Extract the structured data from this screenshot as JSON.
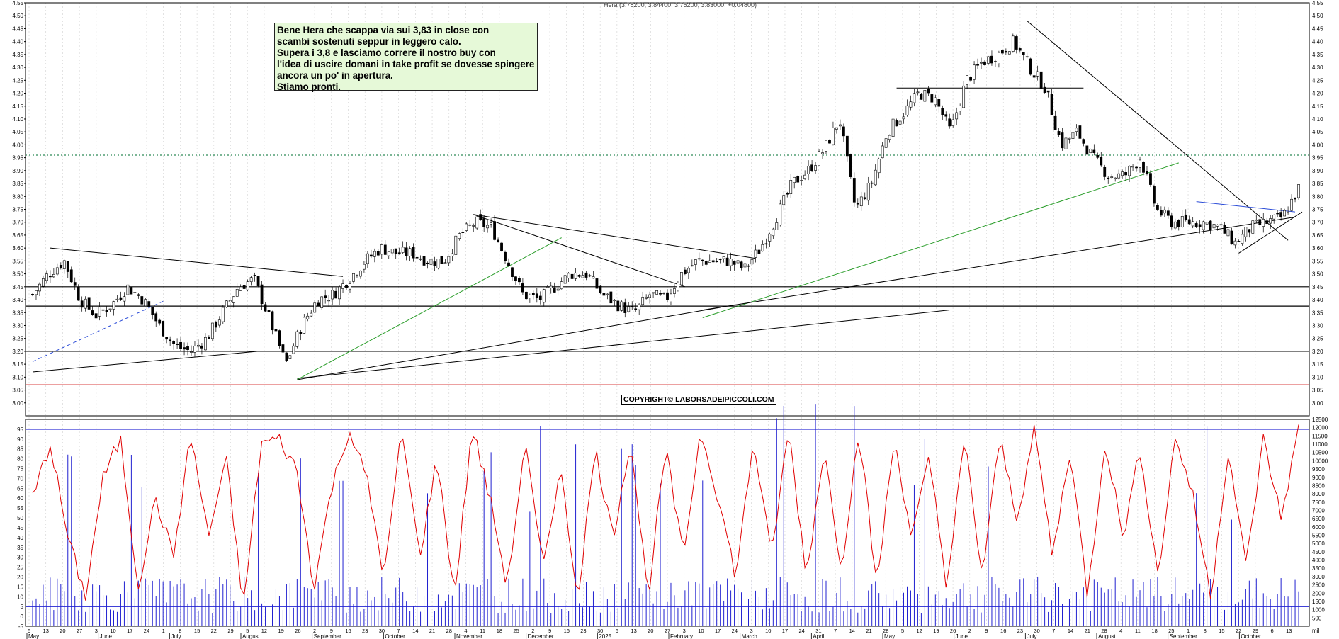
{
  "header": {
    "ohlc_label": "Hera (3.78200, 3.84400, 3.75200, 3.83000, +0.04800)"
  },
  "annotation": {
    "lines": [
      "Bene Hera che scappa via sui 3,83 in close con",
      "scambi sostenuti seppur in leggero calo.",
      "Supera i 3,8 e lasciamo correre il nostro buy con",
      "l'idea di uscire domani in take profit se dovesse spingere",
      "ancora un po' in apertura.",
      "Stiamo pronti."
    ]
  },
  "copyright": "COPYRIGHT© LABORSADEIPICCOLI.COM",
  "chart_data": [
    {
      "type": "candlestick",
      "series_name": "Hera",
      "ylim": [
        2.95,
        4.55
      ],
      "y_ticks": [
        "4.55",
        "4.50",
        "4.45",
        "4.40",
        "4.35",
        "4.30",
        "4.25",
        "4.20",
        "4.15",
        "4.10",
        "4.05",
        "4.00",
        "3.95",
        "3.90",
        "3.85",
        "3.80",
        "3.75",
        "3.70",
        "3.65",
        "3.60",
        "3.55",
        "3.50",
        "3.45",
        "3.40",
        "3.35",
        "3.30",
        "3.25",
        "3.20",
        "3.15",
        "3.10",
        "3.05",
        "3.00"
      ],
      "last_bar": {
        "open": 3.782,
        "high": 3.844,
        "low": 3.752,
        "close": 3.83,
        "change": 0.048
      },
      "horizontal_levels": [
        {
          "value": 3.96,
          "style": "dotted",
          "color": "#2e8b57"
        },
        {
          "value": 3.45,
          "style": "solid",
          "color": "#000000"
        },
        {
          "value": 3.375,
          "style": "solid",
          "color": "#000000"
        },
        {
          "value": 3.2,
          "style": "solid",
          "color": "#000000"
        },
        {
          "value": 3.07,
          "style": "solid",
          "color": "#cc0000"
        }
      ],
      "weekly_close_trace": [
        3.42,
        3.5,
        3.55,
        3.4,
        3.34,
        3.38,
        3.45,
        3.4,
        3.3,
        3.22,
        3.2,
        3.25,
        3.35,
        3.45,
        3.48,
        3.32,
        3.15,
        3.3,
        3.4,
        3.42,
        3.48,
        3.55,
        3.6,
        3.58,
        3.58,
        3.55,
        3.55,
        3.65,
        3.7,
        3.68,
        3.55,
        3.42,
        3.4,
        3.45,
        3.5,
        3.5,
        3.42,
        3.38,
        3.35,
        3.42,
        3.4,
        3.5,
        3.55,
        3.55,
        3.55,
        3.52,
        3.6,
        3.72,
        3.85,
        3.9,
        3.98,
        4.1,
        3.75,
        3.85,
        4.05,
        4.12,
        4.2,
        4.18,
        4.05,
        4.25,
        4.32,
        4.35,
        4.4,
        4.3,
        4.22,
        4.0,
        4.05,
        3.95,
        3.88,
        3.88,
        3.95,
        3.75,
        3.7,
        3.7,
        3.7,
        3.68,
        3.62,
        3.68,
        3.7,
        3.72,
        3.83
      ]
    },
    {
      "type": "line+bar",
      "series": [
        {
          "name": "oscillator",
          "color": "#e00000",
          "ylim": [
            -5,
            100
          ]
        },
        {
          "name": "volume",
          "color": "#0000cc",
          "ylim": [
            0,
            12500
          ]
        }
      ],
      "left_ticks": [
        "95",
        "90",
        "85",
        "80",
        "75",
        "70",
        "65",
        "60",
        "55",
        "50",
        "45",
        "40",
        "35",
        "30",
        "25",
        "20",
        "15",
        "10",
        "5",
        "0",
        "-5"
      ],
      "right_ticks": [
        "12500",
        "12000",
        "11500",
        "11000",
        "10500",
        "10000",
        "9500",
        "9000",
        "8500",
        "8000",
        "7500",
        "7000",
        "6500",
        "6000",
        "5500",
        "5000",
        "4500",
        "4000",
        "3500",
        "3000",
        "2500",
        "2000",
        "1500",
        "1000",
        "500"
      ],
      "right_unit": "mil",
      "levels": [
        95,
        5
      ],
      "oscillator_trace": [
        60,
        88,
        40,
        10,
        70,
        90,
        15,
        60,
        30,
        92,
        40,
        80,
        5,
        88,
        90,
        75,
        15,
        65,
        95,
        70,
        20,
        95,
        30,
        80,
        10,
        96,
        60,
        15,
        88,
        25,
        75,
        10,
        85,
        40,
        90,
        10,
        85,
        30,
        95,
        60,
        20,
        90,
        30,
        95,
        20,
        85,
        25,
        95,
        15,
        90,
        40,
        80,
        15,
        90,
        20,
        90,
        50,
        95,
        30,
        85,
        10,
        90,
        40,
        85,
        20,
        92,
        60,
        10,
        85,
        25,
        90,
        50,
        95
      ]
    },
    {
      "type": "date_axis",
      "months": [
        "May",
        "June",
        "July",
        "August",
        "September",
        "October",
        "November",
        "December",
        "2025",
        "February",
        "March",
        "April",
        "May",
        "June",
        "July",
        "August",
        "September",
        "October"
      ],
      "day_ticks": [
        "6",
        "13",
        "20",
        "27",
        "3",
        "10",
        "17",
        "24",
        "1",
        "8",
        "15",
        "22",
        "29",
        "5",
        "12",
        "19",
        "26",
        "2",
        "9",
        "16",
        "23",
        "30",
        "7",
        "14",
        "21",
        "28",
        "4",
        "11",
        "18",
        "25",
        "2",
        "9",
        "16",
        "23",
        "30",
        "6",
        "13",
        "20",
        "27",
        "3",
        "10",
        "17",
        "24",
        "3",
        "10",
        "17",
        "24",
        "31",
        "7",
        "14",
        "21",
        "28",
        "5",
        "12",
        "19",
        "26",
        "2",
        "9",
        "16",
        "23",
        "30",
        "7",
        "14",
        "21",
        "28",
        "4",
        "11",
        "18",
        "25",
        "1",
        "8",
        "15",
        "22",
        "29",
        "6",
        "13"
      ]
    }
  ]
}
